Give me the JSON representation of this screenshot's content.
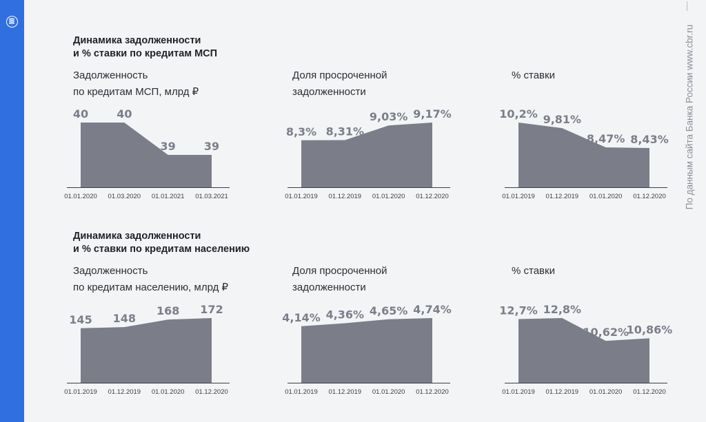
{
  "colors": {
    "accent": "#2f6fe0",
    "area": "#7b7e89",
    "value_text": "#7b7e89",
    "axis": "#3a3c42"
  },
  "logo": {
    "icon": "bank-of-russia-logo-icon"
  },
  "source": "По данным сайта Банка России www.cbr.ru",
  "sections": [
    {
      "title_lines": [
        "Динамика задолженности",
        "и % ставки по кредитам МСП"
      ]
    },
    {
      "title_lines": [
        "Динамика задолженности",
        "и % ставки по кредитам населению"
      ]
    }
  ],
  "chart_data": [
    {
      "type": "area",
      "title_lines": [
        "Задолженность",
        "по кредитам МСП, млрд ₽"
      ],
      "categories": [
        "01.01.2020",
        "01.03.2020",
        "01.01.2021",
        "01.03.2021"
      ],
      "values": [
        40,
        40,
        39,
        39
      ],
      "labels": [
        "40",
        "40",
        "39",
        "39"
      ],
      "ylim": [
        38,
        40
      ]
    },
    {
      "type": "area",
      "title_lines": [
        "Доля просроченной",
        "задолженности"
      ],
      "categories": [
        "01.01.2019",
        "01.12.2019",
        "01.01.2020",
        "01.12.2020"
      ],
      "values": [
        8.3,
        8.31,
        9.03,
        9.17
      ],
      "labels": [
        "8,3%",
        "8,31%",
        "9,03%",
        "9,17%"
      ],
      "ylim": [
        6,
        9.17
      ]
    },
    {
      "type": "area",
      "title_lines": [
        "% ставки",
        ""
      ],
      "categories": [
        "01.01.2019",
        "01.12.2019",
        "01.01.2020",
        "01.12.2020"
      ],
      "values": [
        10.2,
        9.81,
        8.47,
        8.43
      ],
      "labels": [
        "10,2%",
        "9,81%",
        "8,47%",
        "8,43%"
      ],
      "ylim": [
        5.7,
        10.2
      ]
    },
    {
      "type": "area",
      "title_lines": [
        "Задолженность",
        "по кредитам населению, млрд ₽"
      ],
      "categories": [
        "01.01.2019",
        "01.12.2019",
        "01.01.2020",
        "01.12.2020"
      ],
      "values": [
        145,
        148,
        168,
        172
      ],
      "labels": [
        "145",
        "148",
        "168",
        "172"
      ],
      "ylim": [
        0,
        172
      ]
    },
    {
      "type": "area",
      "title_lines": [
        "Доля просроченной",
        "задолженности"
      ],
      "categories": [
        "01.01.2019",
        "01.12.2019",
        "01.01.2020",
        "01.12.2020"
      ],
      "values": [
        4.14,
        4.36,
        4.65,
        4.74
      ],
      "labels": [
        "4,14%",
        "4,36%",
        "4,65%",
        "4,74%"
      ],
      "ylim": [
        0,
        4.74
      ]
    },
    {
      "type": "area",
      "title_lines": [
        "% ставки",
        ""
      ],
      "categories": [
        "01.01.2019",
        "01.12.2019",
        "01.01.2020",
        "01.12.2020"
      ],
      "values": [
        12.7,
        12.8,
        10.62,
        10.86
      ],
      "labels": [
        "12,7%",
        "12,8%",
        "10,62%",
        "10,86%"
      ],
      "ylim": [
        6.6,
        12.8
      ]
    }
  ]
}
